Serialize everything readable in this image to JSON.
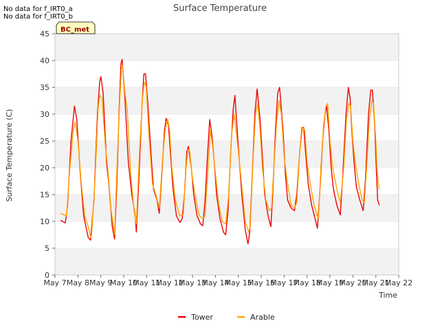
{
  "notes": [
    "No data for f_IRT0_a",
    "No data for f_IRT0_b"
  ],
  "badge": "BC_met",
  "colors": {
    "Tower": "#ee0000",
    "Arable": "#ffa500",
    "band": "#f2f2f2",
    "grid": "#dddddd",
    "badge_bg": "#ffffc0",
    "badge_text": "#990000"
  },
  "chart_data": {
    "type": "line",
    "title": "Surface Temperature",
    "xlabel": "Time",
    "ylabel": "Surface Temperature (C)",
    "ylim": [
      0,
      45
    ],
    "yticks": [
      0,
      5,
      10,
      15,
      20,
      25,
      30,
      35,
      40,
      45
    ],
    "xlim": [
      7,
      22
    ],
    "xticks": [
      {
        "v": 7,
        "label": "May 7"
      },
      {
        "v": 8,
        "label": "May 8"
      },
      {
        "v": 9,
        "label": "May 9"
      },
      {
        "v": 10,
        "label": "May 10"
      },
      {
        "v": 11,
        "label": "May 11"
      },
      {
        "v": 12,
        "label": "May 12"
      },
      {
        "v": 13,
        "label": "May 13"
      },
      {
        "v": 14,
        "label": "May 14"
      },
      {
        "v": 15,
        "label": "May 15"
      },
      {
        "v": 16,
        "label": "May 16"
      },
      {
        "v": 17,
        "label": "May 17"
      },
      {
        "v": 18,
        "label": "May 18"
      },
      {
        "v": 19,
        "label": "May 19"
      },
      {
        "v": 20,
        "label": "May 20"
      },
      {
        "v": 21,
        "label": "May 21"
      },
      {
        "v": 22,
        "label": "May 22"
      }
    ],
    "x_unit": "day of May",
    "grid": true,
    "legend_position": "bottom-center",
    "series": [
      {
        "name": "Tower",
        "points": [
          [
            7.25,
            10.2
          ],
          [
            7.45,
            9.7
          ],
          [
            7.55,
            13
          ],
          [
            7.7,
            25
          ],
          [
            7.85,
            31.5
          ],
          [
            7.95,
            29
          ],
          [
            8.1,
            19
          ],
          [
            8.25,
            11
          ],
          [
            8.45,
            7
          ],
          [
            8.55,
            6.5
          ],
          [
            8.7,
            14
          ],
          [
            8.85,
            30
          ],
          [
            8.95,
            36
          ],
          [
            9.0,
            37
          ],
          [
            9.1,
            34
          ],
          [
            9.25,
            21
          ],
          [
            9.35,
            17
          ],
          [
            9.5,
            9
          ],
          [
            9.6,
            6.7
          ],
          [
            9.7,
            17
          ],
          [
            9.8,
            31
          ],
          [
            9.88,
            39.5
          ],
          [
            9.93,
            40.2
          ],
          [
            10.05,
            33
          ],
          [
            10.2,
            21
          ],
          [
            10.35,
            15
          ],
          [
            10.5,
            11
          ],
          [
            10.55,
            8
          ],
          [
            10.65,
            17
          ],
          [
            10.8,
            32
          ],
          [
            10.88,
            37.5
          ],
          [
            10.95,
            37.5
          ],
          [
            11.05,
            32
          ],
          [
            11.2,
            22
          ],
          [
            11.3,
            16
          ],
          [
            11.45,
            14
          ],
          [
            11.55,
            11.5
          ],
          [
            11.65,
            18
          ],
          [
            11.78,
            27
          ],
          [
            11.85,
            29.2
          ],
          [
            11.95,
            28
          ],
          [
            12.05,
            22
          ],
          [
            12.15,
            16
          ],
          [
            12.3,
            11
          ],
          [
            12.45,
            9.8
          ],
          [
            12.55,
            10.5
          ],
          [
            12.65,
            15
          ],
          [
            12.75,
            23
          ],
          [
            12.82,
            24
          ],
          [
            12.95,
            20
          ],
          [
            13.05,
            15
          ],
          [
            13.2,
            11
          ],
          [
            13.35,
            9.5
          ],
          [
            13.45,
            9.2
          ],
          [
            13.55,
            14
          ],
          [
            13.65,
            22
          ],
          [
            13.75,
            29
          ],
          [
            13.85,
            26
          ],
          [
            13.95,
            21
          ],
          [
            14.05,
            15
          ],
          [
            14.2,
            10.5
          ],
          [
            14.35,
            8
          ],
          [
            14.45,
            7.5
          ],
          [
            14.55,
            12
          ],
          [
            14.68,
            24
          ],
          [
            14.78,
            31
          ],
          [
            14.85,
            33.5
          ],
          [
            14.95,
            27
          ],
          [
            15.05,
            21
          ],
          [
            15.15,
            15
          ],
          [
            15.3,
            8.5
          ],
          [
            15.42,
            5.8
          ],
          [
            15.5,
            8
          ],
          [
            15.6,
            18
          ],
          [
            15.72,
            30
          ],
          [
            15.82,
            34.7
          ],
          [
            15.95,
            29
          ],
          [
            16.05,
            22
          ],
          [
            16.15,
            15
          ],
          [
            16.3,
            11
          ],
          [
            16.42,
            9
          ],
          [
            16.5,
            15
          ],
          [
            16.62,
            27
          ],
          [
            16.72,
            34
          ],
          [
            16.8,
            35
          ],
          [
            16.95,
            27
          ],
          [
            17.05,
            19
          ],
          [
            17.15,
            14
          ],
          [
            17.3,
            12.5
          ],
          [
            17.45,
            12
          ],
          [
            17.55,
            15
          ],
          [
            17.68,
            23
          ],
          [
            17.78,
            27.5
          ],
          [
            17.85,
            27.5
          ],
          [
            17.95,
            22
          ],
          [
            18.05,
            17
          ],
          [
            18.2,
            13
          ],
          [
            18.35,
            10.5
          ],
          [
            18.45,
            8.7
          ],
          [
            18.55,
            15
          ],
          [
            18.68,
            25
          ],
          [
            18.78,
            30
          ],
          [
            18.85,
            31.5
          ],
          [
            18.95,
            27
          ],
          [
            19.05,
            20
          ],
          [
            19.15,
            16
          ],
          [
            19.3,
            13
          ],
          [
            19.45,
            11.2
          ],
          [
            19.55,
            18
          ],
          [
            19.7,
            30
          ],
          [
            19.8,
            35
          ],
          [
            19.88,
            33
          ],
          [
            19.95,
            27
          ],
          [
            20.05,
            21
          ],
          [
            20.15,
            16.5
          ],
          [
            20.3,
            14
          ],
          [
            20.45,
            12
          ],
          [
            20.55,
            18
          ],
          [
            20.68,
            30
          ],
          [
            20.78,
            34.5
          ],
          [
            20.85,
            34.5
          ],
          [
            20.95,
            28
          ],
          [
            21.02,
            20
          ],
          [
            21.08,
            14
          ],
          [
            21.15,
            13
          ]
        ]
      },
      {
        "name": "Arable",
        "points": [
          [
            7.25,
            11.5
          ],
          [
            7.5,
            11
          ],
          [
            7.65,
            20
          ],
          [
            7.8,
            27
          ],
          [
            7.88,
            28.5
          ],
          [
            8.0,
            25
          ],
          [
            8.15,
            17
          ],
          [
            8.3,
            11
          ],
          [
            8.45,
            9
          ],
          [
            8.55,
            7
          ],
          [
            8.6,
            7.5
          ],
          [
            8.75,
            18
          ],
          [
            8.88,
            31
          ],
          [
            8.95,
            33.5
          ],
          [
            9.05,
            33
          ],
          [
            9.2,
            24
          ],
          [
            9.3,
            20
          ],
          [
            9.45,
            12
          ],
          [
            9.6,
            7.5
          ],
          [
            9.72,
            22
          ],
          [
            9.82,
            32
          ],
          [
            9.9,
            38.5
          ],
          [
            9.95,
            39
          ],
          [
            10.05,
            34
          ],
          [
            10.15,
            31
          ],
          [
            10.3,
            19
          ],
          [
            10.45,
            12
          ],
          [
            10.55,
            9.5
          ],
          [
            10.7,
            24
          ],
          [
            10.82,
            33
          ],
          [
            10.9,
            36
          ],
          [
            10.98,
            35
          ],
          [
            11.1,
            26
          ],
          [
            11.25,
            17
          ],
          [
            11.4,
            15
          ],
          [
            11.55,
            12.5
          ],
          [
            11.7,
            22
          ],
          [
            11.82,
            27.5
          ],
          [
            11.92,
            29
          ],
          [
            12.0,
            27
          ],
          [
            12.1,
            20
          ],
          [
            12.25,
            14
          ],
          [
            12.45,
            11
          ],
          [
            12.6,
            11.3
          ],
          [
            12.72,
            20
          ],
          [
            12.8,
            23.5
          ],
          [
            12.88,
            23
          ],
          [
            13.0,
            18
          ],
          [
            13.15,
            14
          ],
          [
            13.3,
            11
          ],
          [
            13.45,
            10.5
          ],
          [
            13.55,
            11
          ],
          [
            13.65,
            18
          ],
          [
            13.78,
            27
          ],
          [
            13.88,
            24
          ],
          [
            14.0,
            19
          ],
          [
            14.15,
            13
          ],
          [
            14.3,
            10
          ],
          [
            14.45,
            9.5
          ],
          [
            14.58,
            15
          ],
          [
            14.7,
            26
          ],
          [
            14.82,
            30
          ],
          [
            14.9,
            27
          ],
          [
            15.0,
            23
          ],
          [
            15.12,
            18
          ],
          [
            15.3,
            10
          ],
          [
            15.45,
            8
          ],
          [
            15.52,
            9
          ],
          [
            15.65,
            22
          ],
          [
            15.75,
            30
          ],
          [
            15.85,
            32
          ],
          [
            15.95,
            27
          ],
          [
            16.05,
            20
          ],
          [
            16.2,
            14
          ],
          [
            16.35,
            12
          ],
          [
            16.45,
            12.5
          ],
          [
            16.55,
            20
          ],
          [
            16.68,
            29
          ],
          [
            16.78,
            32.5
          ],
          [
            16.88,
            30
          ],
          [
            17.0,
            22
          ],
          [
            17.15,
            17
          ],
          [
            17.3,
            13
          ],
          [
            17.45,
            12.5
          ],
          [
            17.55,
            13.5
          ],
          [
            17.68,
            23
          ],
          [
            17.8,
            27.5
          ],
          [
            17.9,
            27
          ],
          [
            18.0,
            21
          ],
          [
            18.1,
            18
          ],
          [
            18.3,
            13
          ],
          [
            18.45,
            11
          ],
          [
            18.5,
            10.5
          ],
          [
            18.6,
            20
          ],
          [
            18.72,
            28
          ],
          [
            18.82,
            31.5
          ],
          [
            18.9,
            32
          ],
          [
            19.0,
            25
          ],
          [
            19.12,
            20
          ],
          [
            19.3,
            16
          ],
          [
            19.45,
            13.5
          ],
          [
            19.6,
            20
          ],
          [
            19.72,
            29
          ],
          [
            19.82,
            32
          ],
          [
            19.9,
            31.5
          ],
          [
            20.0,
            25
          ],
          [
            20.1,
            21
          ],
          [
            20.25,
            17
          ],
          [
            20.4,
            14
          ],
          [
            20.5,
            13.5
          ],
          [
            20.6,
            20
          ],
          [
            20.72,
            29
          ],
          [
            20.82,
            32.5
          ],
          [
            20.9,
            32
          ],
          [
            21.0,
            25
          ],
          [
            21.05,
            20
          ],
          [
            21.1,
            17.5
          ],
          [
            21.15,
            16
          ]
        ]
      }
    ]
  }
}
